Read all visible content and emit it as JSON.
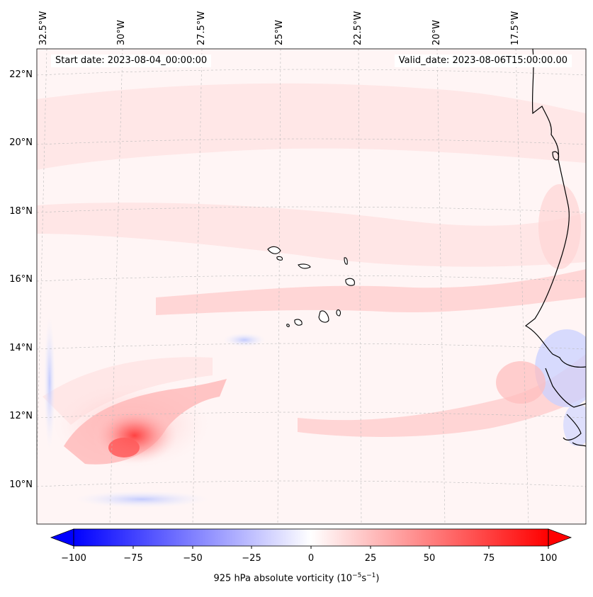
{
  "map": {
    "projection": "regional lat/lon map, slightly curved graticule",
    "lon_labels": [
      "32.5°W",
      "30°W",
      "27.5°W",
      "25°W",
      "22.5°W",
      "20°W",
      "17.5°W"
    ],
    "lat_labels": [
      "22°N",
      "20°N",
      "18°N",
      "16°N",
      "14°N",
      "12°N",
      "10°N"
    ],
    "lat_range_deg": [
      8.8,
      22.8
    ],
    "lon_range_deg": [
      -33,
      -15.5
    ]
  },
  "info": {
    "start_date": "Start date: 2023-08-04_00:00:00",
    "valid_date": "Valid_date: 2023-08-06T15:00:00.00"
  },
  "colorbar": {
    "title_prefix": "925 hPa absolute vorticity (10",
    "title_exp1": "−5",
    "title_mid": "s",
    "title_exp2": "−1",
    "title_suffix": ")",
    "ticks": [
      "−100",
      "−75",
      "−50",
      "−25",
      "0",
      "25",
      "50",
      "75",
      "100"
    ],
    "range": [
      -100,
      100
    ],
    "colormap": "bwr",
    "color_min": "#0000ff",
    "color_mid": "#ffffff",
    "color_max": "#ff0000"
  },
  "features": {
    "peak_vorticity_value_approx": 90,
    "peak_location": "near 11°N, 30°W",
    "coastline_color": "#000000"
  }
}
